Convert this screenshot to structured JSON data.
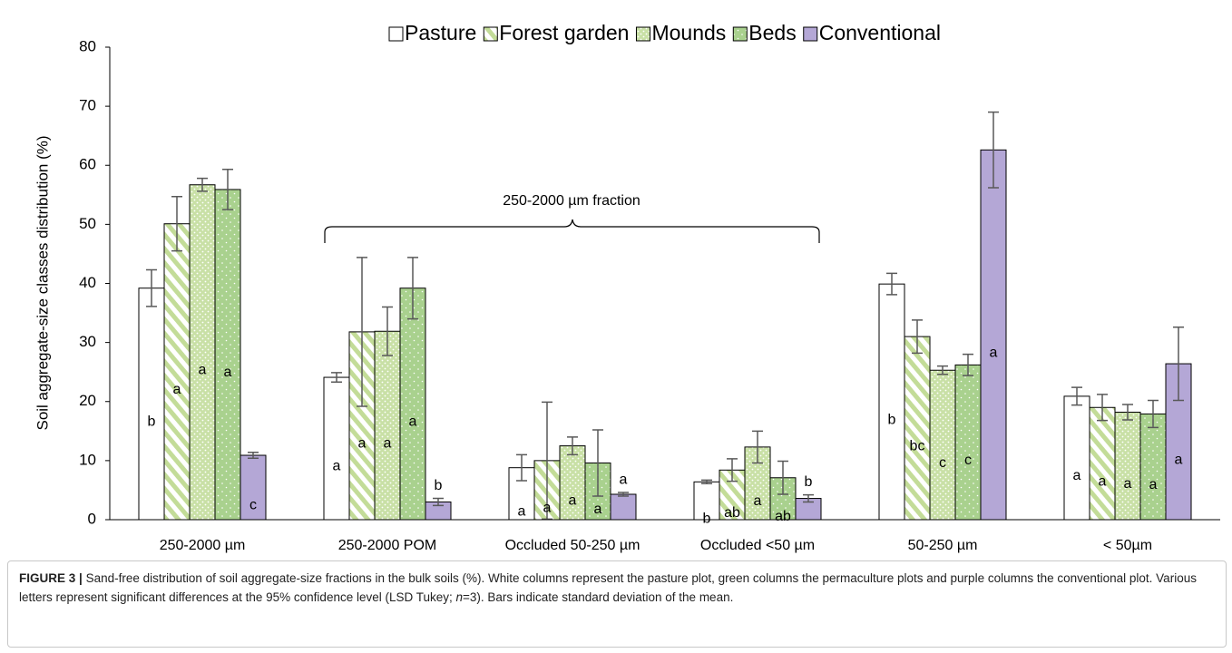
{
  "chart_data": {
    "type": "bar",
    "y_label": "Soil aggregate-size classes distribution (%)",
    "annotation": "250-2000 µm fraction",
    "categories": [
      "250-2000 µm",
      "250-2000 POM",
      "Occluded 50-250 µm",
      "Occluded <50 µm",
      "50-250 µm",
      "< 50µm"
    ],
    "series": [
      {
        "name": "Pasture",
        "color": "#ffffff",
        "values": [
          39.2,
          24.1,
          8.8,
          6.4,
          39.9,
          20.9
        ],
        "errors": [
          3.1,
          0.8,
          2.2,
          0.3,
          1.8,
          1.5
        ],
        "letters": [
          "b",
          "a",
          "a",
          "b",
          "b",
          "a"
        ]
      },
      {
        "name": "Forest garden",
        "color": "#c3dc98",
        "values": [
          50.1,
          31.8,
          10.0,
          8.4,
          31.0,
          19.0
        ],
        "errors": [
          4.6,
          12.6,
          9.9,
          1.9,
          2.8,
          2.2
        ],
        "letters": [
          "a",
          "a",
          "a",
          "ab",
          "bc",
          "a"
        ]
      },
      {
        "name": "Mounds",
        "color": "#c9e0a6",
        "values": [
          56.7,
          31.9,
          12.5,
          12.3,
          25.3,
          18.2
        ],
        "errors": [
          1.1,
          4.1,
          1.5,
          2.7,
          0.7,
          1.3
        ],
        "letters": [
          "a",
          "a",
          "a",
          "a",
          "c",
          "a"
        ]
      },
      {
        "name": "Beds",
        "color": "#a9d18e",
        "values": [
          55.9,
          39.2,
          9.6,
          7.1,
          26.2,
          17.9
        ],
        "errors": [
          3.4,
          5.2,
          5.6,
          2.8,
          1.8,
          2.3
        ],
        "letters": [
          "a",
          "a",
          "a",
          "ab",
          "c",
          "a"
        ]
      },
      {
        "name": "Conventional",
        "color": "#b4a7d6",
        "values": [
          10.9,
          3.0,
          4.3,
          3.6,
          62.6,
          26.4
        ],
        "errors": [
          0.5,
          0.6,
          0.3,
          0.6,
          6.4,
          6.2
        ],
        "letters": [
          "c",
          "b",
          "a",
          "b",
          "a",
          "a"
        ]
      }
    ],
    "ylim": [
      0,
      80
    ],
    "yticks": [
      0,
      10,
      20,
      30,
      40,
      50,
      60,
      70,
      80
    ],
    "grid": false,
    "legend": "top",
    "caption": {
      "label": "FIGURE 3 |",
      "text_before": "Sand-free distribution of soil aggregate-size fractions in the bulk soils (%). White columns represent the pasture plot, green columns the permaculture plots and purple columns the conventional plot. Various letters represent significant differences at the 95% confidence level (LSD Tukey; ",
      "italic": "n",
      "text_after": "=3). Bars indicate standard deviation of the mean."
    }
  }
}
